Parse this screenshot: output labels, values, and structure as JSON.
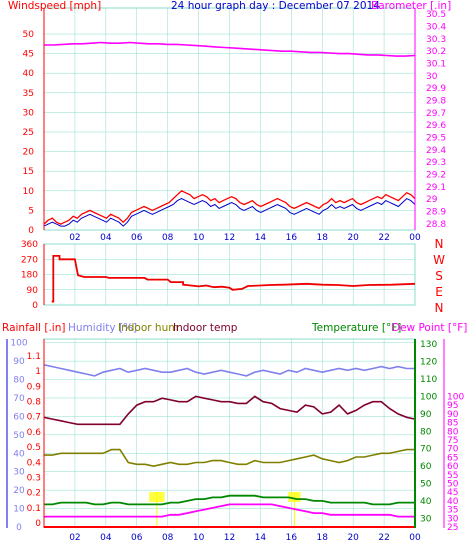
{
  "title": "24 hour graph day : December 07 2014",
  "colors": {
    "wind": "#ff0000",
    "gust_fill": "#ff0000",
    "avg": "#0000cc",
    "baro": "#ff00ff",
    "dir": "#ee0000",
    "humidity": "#8080ee",
    "indoor_hum": "#808000",
    "indoor_temp": "#800030",
    "temperature": "#008800",
    "dewpoint": "#ff00ff",
    "rain": "#ff0000",
    "grid": "#88ddcc",
    "yellow": "#ffff00"
  },
  "x_ticks": [
    "02",
    "04",
    "06",
    "08",
    "10",
    "12",
    "14",
    "16",
    "18",
    "20",
    "22",
    "00"
  ],
  "chart_data": [
    {
      "type": "line",
      "labels": {
        "left": "Windspeed [mph]",
        "right": "Barometer [.in]"
      },
      "left_ticks": [
        "0",
        "5",
        "10",
        "15",
        "20",
        "25",
        "30",
        "35",
        "40",
        "45",
        "50"
      ],
      "right_ticks": [
        "28.8",
        "28.9",
        "29",
        "29.1",
        "29.2",
        "29.3",
        "29.4",
        "29.5",
        "29.6",
        "29.7",
        "29.8",
        "29.9",
        "30",
        "30.1",
        "30.2",
        "30.3",
        "30.4",
        "30.5"
      ],
      "ylim_left": [
        0,
        50
      ],
      "ylim_right": [
        28.75,
        30.55
      ],
      "series": [
        {
          "name": "Windspeed",
          "axis": "left",
          "values": [
            1.5,
            2.5,
            3,
            2,
            1.5,
            2,
            2.5,
            3.5,
            3,
            4,
            4.5,
            5,
            4.5,
            4,
            3.5,
            3,
            4,
            3.5,
            3,
            2,
            3,
            4.5,
            5,
            5.5,
            6,
            5.5,
            5,
            5.5,
            6,
            6.5,
            7,
            8,
            9,
            10,
            9.5,
            9,
            8,
            8.5,
            9,
            8.5,
            7.5,
            8,
            7,
            7.5,
            8,
            8.5,
            8,
            7,
            6.5,
            7,
            7.5,
            6.5,
            6,
            6.5,
            7,
            7.5,
            8,
            7.5,
            7,
            6,
            5.5,
            6,
            6.5,
            7,
            6.5,
            6,
            5.5,
            6.5,
            7,
            8,
            7,
            7.5,
            7,
            7.5,
            8,
            7,
            6.5,
            7,
            7.5,
            8,
            8.5,
            8,
            9,
            8.5,
            8,
            7.5,
            8.5,
            9.5,
            9,
            8
          ]
        },
        {
          "name": "Average",
          "axis": "left",
          "values": [
            1,
            1.5,
            2,
            1.5,
            1,
            1,
            1.5,
            2.5,
            2,
            3,
            3.5,
            4,
            3.5,
            3,
            2.5,
            2,
            3,
            2.5,
            2,
            1,
            2,
            3.5,
            4,
            4.5,
            5,
            4.5,
            4,
            4.5,
            5,
            5.5,
            6,
            6.5,
            7.5,
            8,
            7.5,
            7,
            6.5,
            7,
            7.5,
            7,
            6,
            6.5,
            5.5,
            6,
            6.5,
            7,
            6.5,
            5.5,
            5,
            5.5,
            6,
            5,
            4.5,
            5,
            5.5,
            6,
            6.5,
            6,
            5.5,
            4.5,
            4,
            4.5,
            5,
            5.5,
            5,
            4.5,
            4,
            5,
            5.5,
            6.5,
            5.5,
            6,
            5.5,
            6,
            6.5,
            5.5,
            5,
            5.5,
            6,
            6.5,
            7,
            6.5,
            7.5,
            7,
            6.5,
            6,
            7,
            8,
            7.5,
            6.5
          ]
        },
        {
          "name": "Barometer",
          "axis": "right",
          "values": [
            30.25,
            30.25,
            30.255,
            30.26,
            30.26,
            30.265,
            30.27,
            30.265,
            30.265,
            30.27,
            30.265,
            30.26,
            30.26,
            30.255,
            30.255,
            30.25,
            30.245,
            30.24,
            30.235,
            30.23,
            30.225,
            30.22,
            30.215,
            30.21,
            30.205,
            30.2,
            30.2,
            30.195,
            30.19,
            30.19,
            30.185,
            30.18,
            30.18,
            30.175,
            30.17,
            30.17,
            30.165,
            30.16,
            30.16,
            30.165
          ]
        }
      ]
    },
    {
      "type": "line",
      "labels": {
        "right": [
          "N",
          "W",
          "S",
          "E",
          "N"
        ]
      },
      "left_ticks": [
        "0",
        "90",
        "180",
        "270",
        "360"
      ],
      "ylim": [
        0,
        360
      ],
      "series": [
        {
          "name": "Wind direction",
          "points": [
            [
              0.5,
              20
            ],
            [
              0.6,
              20
            ],
            [
              0.6,
              290
            ],
            [
              1.0,
              290
            ],
            [
              1.0,
              270
            ],
            [
              2.0,
              270
            ],
            [
              2.2,
              175
            ],
            [
              2.6,
              165
            ],
            [
              4.0,
              165
            ],
            [
              4.2,
              160
            ],
            [
              6.5,
              160
            ],
            [
              6.7,
              150
            ],
            [
              8.0,
              150
            ],
            [
              8.2,
              135
            ],
            [
              9.0,
              135
            ],
            [
              9.0,
              120
            ],
            [
              9.5,
              115
            ],
            [
              10.0,
              110
            ],
            [
              10.5,
              115
            ],
            [
              11.0,
              105
            ],
            [
              11.5,
              108
            ],
            [
              12.0,
              102
            ],
            [
              12.2,
              90
            ],
            [
              12.8,
              95
            ],
            [
              13.2,
              112
            ],
            [
              14.0,
              115
            ],
            [
              14.6,
              118
            ],
            [
              15.5,
              120
            ],
            [
              17.0,
              125
            ],
            [
              18.0,
              120
            ],
            [
              19.0,
              118
            ],
            [
              19.5,
              115
            ],
            [
              20.0,
              112
            ],
            [
              20.5,
              115
            ],
            [
              21.0,
              118
            ],
            [
              22.5,
              120
            ],
            [
              24.0,
              125
            ]
          ]
        }
      ]
    },
    {
      "type": "line",
      "labels": {
        "rain": "Rainfall [.in]",
        "humidity": "Humidity [%]",
        "indoor_hum": "Indoor hum",
        "indoor_temp": "Indoor temp",
        "temperature": "Temperature [°F]",
        "dewpoint": "Dew Point [°F]"
      },
      "left_ticks_humidity": [
        "0",
        "10",
        "20",
        "30",
        "40",
        "50",
        "60",
        "70",
        "80",
        "90",
        "100"
      ],
      "left_ticks_rain": [
        "0",
        "0.1",
        "0.2",
        "0.3",
        "0.4",
        "0.5",
        "0.6",
        "0.7",
        "0.8",
        "0.9",
        "1",
        "1.1"
      ],
      "right_ticks_temp": [
        "30",
        "40",
        "50",
        "60",
        "70",
        "80",
        "90",
        "100",
        "110",
        "120",
        "130"
      ],
      "right_ticks_dew": [
        "25",
        "30",
        "35",
        "40",
        "45",
        "50",
        "55",
        "60",
        "65",
        "70",
        "75",
        "80",
        "85",
        "90",
        "95",
        "100"
      ],
      "ylim_humidity": [
        0,
        102
      ],
      "ylim_temp": [
        25,
        133
      ],
      "series": [
        {
          "name": "Humidity",
          "axis": "humidity",
          "values": [
            88,
            87,
            86,
            85,
            84,
            83,
            82,
            84,
            85,
            86,
            84,
            85,
            86,
            85,
            84,
            84,
            85,
            86,
            84,
            83,
            84,
            85,
            84,
            83,
            82,
            84,
            85,
            84,
            83,
            85,
            84,
            86,
            85,
            84,
            85,
            86,
            85,
            86,
            85,
            86,
            87,
            86,
            87,
            86,
            86
          ]
        },
        {
          "name": "Indoor hum",
          "axis": "humidity",
          "values": [
            39,
            39,
            40,
            40,
            40,
            40,
            40,
            40,
            42,
            42,
            35,
            34,
            34,
            33,
            34,
            35,
            34,
            34,
            35,
            35,
            36,
            36,
            35,
            34,
            34,
            36,
            35,
            35,
            35,
            36,
            37,
            38,
            39,
            37,
            36,
            35,
            36,
            38,
            38,
            39,
            40,
            40,
            41,
            42,
            42
          ]
        },
        {
          "name": "Indoor temp",
          "axis": "temp",
          "values": [
            88,
            87,
            86,
            85,
            84,
            84,
            84,
            84,
            84,
            84,
            90,
            95,
            97,
            97,
            99,
            98,
            97,
            97,
            100,
            99,
            98,
            97,
            97,
            96,
            96,
            100,
            97,
            96,
            93,
            92,
            91,
            95,
            94,
            90,
            91,
            95,
            90,
            92,
            95,
            97,
            97,
            93,
            90,
            88,
            87
          ]
        },
        {
          "name": "Temperature",
          "axis": "temp",
          "values": [
            38,
            38,
            39,
            39,
            39,
            39,
            38,
            38,
            39,
            39,
            38,
            38,
            38,
            38,
            38,
            39,
            39,
            40,
            41,
            41,
            42,
            42,
            43,
            43,
            43,
            43,
            42,
            42,
            42,
            42,
            41,
            41,
            40,
            40,
            39,
            39,
            39,
            39,
            39,
            38,
            38,
            38,
            39,
            39,
            39
          ]
        },
        {
          "name": "Dew Point",
          "axis": "temp",
          "values": [
            31,
            31,
            31,
            31,
            31,
            31,
            31,
            31,
            31,
            31,
            31,
            31,
            31,
            31,
            31,
            32,
            32,
            33,
            34,
            35,
            36,
            37,
            38,
            38,
            38,
            38,
            38,
            38,
            37,
            36,
            35,
            34,
            33,
            33,
            32,
            32,
            32,
            32,
            32,
            32,
            32,
            32,
            31,
            31,
            31
          ]
        },
        {
          "name": "Rainfall",
          "axis": "rain",
          "values": [
            0,
            0,
            0,
            0,
            0,
            0,
            0,
            0,
            0,
            0,
            0,
            0,
            0,
            0,
            0,
            0,
            0,
            0,
            0,
            0,
            0,
            0,
            0,
            0,
            0,
            0,
            0,
            0,
            0,
            0,
            0,
            0,
            0,
            0,
            0,
            0,
            0,
            0,
            0,
            0,
            0,
            0,
            0,
            0,
            0
          ]
        }
      ]
    }
  ]
}
